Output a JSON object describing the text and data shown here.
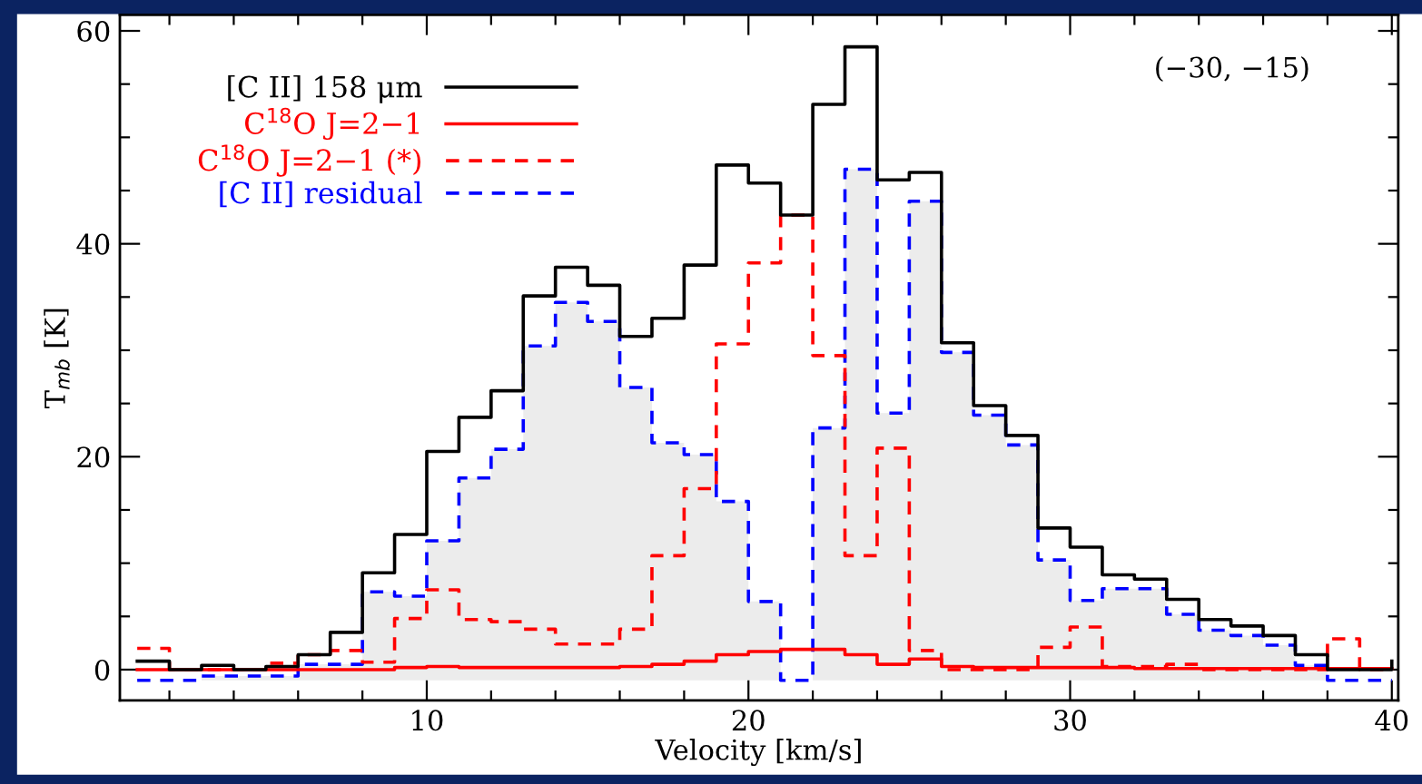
{
  "chart_data": {
    "type": "step",
    "xlabel": "Velocity [km/s]",
    "ylabel": "T$_{mb}$ [K]",
    "annotations": [
      "(−30, −15)"
    ],
    "x": [
      1,
      2,
      3,
      4,
      5,
      6,
      7,
      8,
      9,
      10,
      11,
      12,
      13,
      14,
      15,
      16,
      17,
      18,
      19,
      20,
      21,
      22,
      23,
      24,
      25,
      26,
      27,
      28,
      29,
      30,
      31,
      32,
      33,
      34,
      35,
      36,
      37,
      38,
      39,
      40
    ],
    "xlim": [
      0.46,
      40.2
    ],
    "ylim": [
      -2.9,
      61.5
    ],
    "xticks": [
      {
        "value": 2,
        "label": null
      },
      {
        "value": 4,
        "label": null
      },
      {
        "value": 6,
        "label": null
      },
      {
        "value": 8,
        "label": null
      },
      10,
      {
        "value": 12,
        "label": null
      },
      {
        "value": 14,
        "label": null
      },
      {
        "value": 16,
        "label": null
      },
      {
        "value": 18,
        "label": null
      },
      20,
      {
        "value": 22,
        "label": null
      },
      {
        "value": 24,
        "label": null
      },
      {
        "value": 26,
        "label": null
      },
      {
        "value": 28,
        "label": null
      },
      30,
      {
        "value": 32,
        "label": null
      },
      {
        "value": 34,
        "label": null
      },
      {
        "value": 36,
        "label": null
      },
      {
        "value": 38,
        "label": null
      },
      40
    ],
    "yticks": [
      0,
      {
        "value": 5,
        "label": null
      },
      {
        "value": 10,
        "label": null
      },
      {
        "value": 15,
        "label": null
      },
      20,
      {
        "value": 25,
        "label": null
      },
      {
        "value": 30,
        "label": null
      },
      {
        "value": 35,
        "label": null
      },
      40,
      {
        "value": 45,
        "label": null
      },
      {
        "value": 50,
        "label": null
      },
      {
        "value": 55,
        "label": null
      },
      60
    ],
    "grid": false,
    "legend": "top left",
    "series": [
      {
        "name": "[C II] 158 μm",
        "color": "#000000",
        "line_style": "solid",
        "values": [
          0.8,
          0,
          0.4,
          0,
          0.3,
          1.4,
          3.5,
          9.1,
          12.7,
          20.5,
          23.7,
          26.2,
          35.1,
          37.8,
          36.1,
          31.3,
          33.0,
          38.0,
          47.4,
          45.7,
          42.7,
          53.1,
          58.5,
          46.0,
          46.7,
          30.7,
          24.8,
          22.0,
          13.3,
          11.5,
          8.9,
          8.5,
          6.6,
          4.7,
          4.1,
          3.2,
          1.4,
          0,
          0,
          0.8
        ]
      },
      {
        "name": "C$^{18}$O J=2−1",
        "color": "#ff0000",
        "line_style": "solid",
        "values": [
          0,
          0,
          0,
          0,
          0,
          0,
          0,
          0,
          0.2,
          0.3,
          0.2,
          0.2,
          0.2,
          0.2,
          0.2,
          0.3,
          0.5,
          0.8,
          1.4,
          1.7,
          1.9,
          1.9,
          1.4,
          0.5,
          1.0,
          0.3,
          0.2,
          0.2,
          0.2,
          0.2,
          0.2,
          0.1,
          0.1,
          0.1,
          0.1,
          0.1,
          0.1,
          0.1,
          0.1,
          0.1
        ]
      },
      {
        "name": "C$^{18}$O J=2−1 (*)",
        "color": "#ff0000",
        "line_style": "dashed",
        "values": [
          2.0,
          0,
          0,
          0,
          0.6,
          1.4,
          1.8,
          0.7,
          4.8,
          7.5,
          4.7,
          4.5,
          3.8,
          2.4,
          2.4,
          3.8,
          10.7,
          17.0,
          30.6,
          38.2,
          42.7,
          29.5,
          10.7,
          20.8,
          1.8,
          0,
          0,
          0,
          2.1,
          4.0,
          0.3,
          0.3,
          0.5,
          0,
          0,
          0,
          0,
          2.9,
          0,
          0
        ]
      },
      {
        "name": "[C II] residual",
        "type": "step",
        "color": "#0000ff",
        "line_style": "dashed",
        "values": [
          -1.0,
          -1.0,
          -0.6,
          -0.6,
          -0.6,
          0.5,
          0.5,
          7.3,
          6.9,
          12.1,
          18.0,
          20.7,
          30.4,
          34.5,
          32.7,
          26.5,
          21.3,
          20.2,
          15.8,
          6.4,
          -1.0,
          22.7,
          47.0,
          24.1,
          44.0,
          29.8,
          23.9,
          21.1,
          10.3,
          6.5,
          7.6,
          7.6,
          5.2,
          3.7,
          3.2,
          2.3,
          0.4,
          -1.0,
          -1.0,
          -1.0
        ]
      }
    ]
  }
}
